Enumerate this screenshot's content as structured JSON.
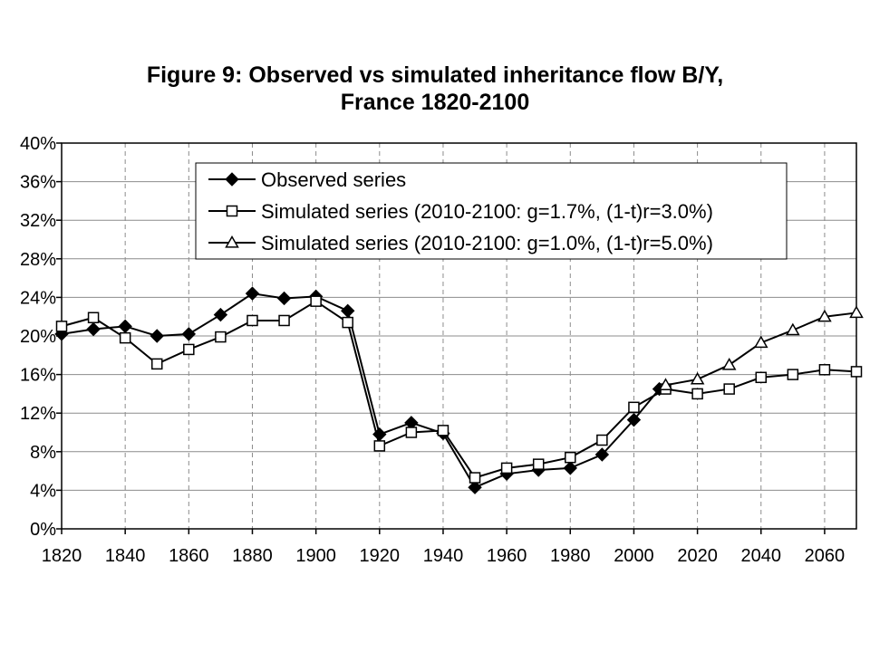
{
  "chart_data": {
    "type": "line",
    "title": "Figure 9: Observed vs simulated inheritance flow B/Y,",
    "subtitle": "France 1820-2100",
    "xlabel": "",
    "ylabel": "",
    "xlim": [
      1820,
      2070
    ],
    "ylim": [
      0,
      40
    ],
    "x_ticks": [
      1820,
      1840,
      1860,
      1880,
      1900,
      1920,
      1940,
      1960,
      1980,
      2000,
      2020,
      2040,
      2060
    ],
    "y_ticks": [
      0,
      4,
      8,
      12,
      16,
      20,
      24,
      28,
      32,
      36,
      40
    ],
    "y_tick_labels": [
      "0%",
      "4%",
      "8%",
      "12%",
      "16%",
      "20%",
      "24%",
      "28%",
      "32%",
      "36%",
      "40%"
    ],
    "grid": {
      "horizontal": "solid",
      "vertical": "dashed"
    },
    "legend_position": "top-right",
    "series": [
      {
        "name": "Observed series",
        "marker": "diamond-filled",
        "x": [
          1820,
          1830,
          1840,
          1850,
          1860,
          1870,
          1880,
          1890,
          1900,
          1910,
          1920,
          1930,
          1940,
          1950,
          1960,
          1970,
          1980,
          1990,
          2000,
          2008
        ],
        "values": [
          20.2,
          20.7,
          21.0,
          20.0,
          20.2,
          22.2,
          24.4,
          23.9,
          24.1,
          22.6,
          9.8,
          11.0,
          9.9,
          4.3,
          5.7,
          6.1,
          6.3,
          7.7,
          11.3,
          14.5
        ]
      },
      {
        "name": "Simulated series (2010-2100: g=1.7%, (1-t)r=3.0%)",
        "marker": "square-open",
        "x": [
          1820,
          1830,
          1840,
          1850,
          1860,
          1870,
          1880,
          1890,
          1900,
          1910,
          1920,
          1930,
          1940,
          1950,
          1960,
          1970,
          1980,
          1990,
          2000,
          2010,
          2020,
          2030,
          2040,
          2050,
          2060,
          2070
        ],
        "values": [
          21.0,
          21.9,
          19.8,
          17.1,
          18.6,
          19.9,
          21.6,
          21.6,
          23.6,
          21.4,
          8.6,
          10.0,
          10.2,
          5.3,
          6.3,
          6.7,
          7.4,
          9.2,
          12.6,
          14.5,
          14.0,
          14.5,
          15.7,
          16.0,
          16.5,
          16.3
        ]
      },
      {
        "name": "Simulated series (2010-2100: g=1.0%, (1-t)r=5.0%)",
        "marker": "triangle-open",
        "x": [
          2010,
          2020,
          2030,
          2040,
          2050,
          2060,
          2070
        ],
        "values": [
          14.9,
          15.5,
          17.0,
          19.3,
          20.6,
          22.0,
          22.4
        ]
      }
    ]
  }
}
